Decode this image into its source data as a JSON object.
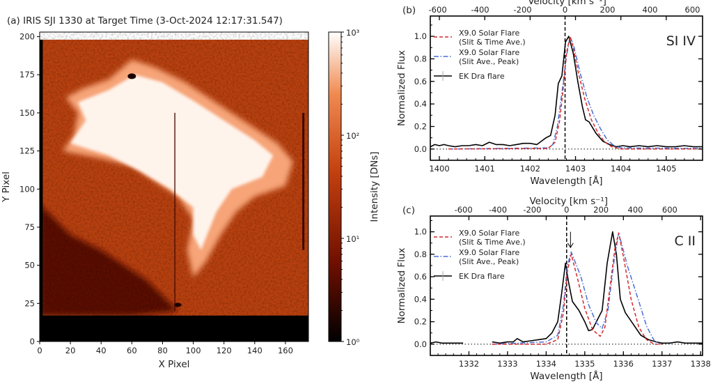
{
  "chart_data": [
    {
      "type": "heatmap",
      "title": "(a) IRIS SJI 1330 at Target Time (3-Oct-2024 12:17:31.547)",
      "xlabel": "X Pixel",
      "ylabel": "Y Pixel",
      "xlim": [
        0,
        175
      ],
      "ylim": [
        0,
        203
      ],
      "xticks": [
        0,
        20,
        40,
        60,
        80,
        100,
        120,
        140,
        160
      ],
      "yticks": [
        0,
        25,
        50,
        75,
        100,
        125,
        150,
        175,
        200
      ],
      "colorbar": {
        "label": "Intensity [DNs]",
        "scale": "log",
        "range": [
          1,
          1000
        ],
        "ticks": [
          {
            "value": 1,
            "label": "10⁰"
          },
          {
            "value": 10,
            "label": "10¹"
          },
          {
            "value": 100,
            "label": "10²"
          },
          {
            "value": 1000,
            "label": "10³"
          }
        ],
        "colors": [
          "#000000",
          "#6e0f00",
          "#c4400f",
          "#f08a50",
          "#ffffff"
        ]
      }
    },
    {
      "type": "line",
      "panel_label": "(b)",
      "line_label": "SI IV",
      "xlabel": "Wavelength [Å]",
      "ylabel": "Normalized Flux",
      "top_xlabel": "Velocity [km s⁻¹]",
      "rest_wavelength": 1402.77,
      "xlim": [
        1399.8,
        1405.8
      ],
      "ylim": [
        -0.1,
        1.18
      ],
      "xticks": [
        1400,
        1401,
        1402,
        1403,
        1404,
        1405
      ],
      "yticks": [
        "0.0",
        "0.2",
        "0.4",
        "0.6",
        "0.8",
        "1.0"
      ],
      "top_xticks": [
        -600,
        -400,
        -200,
        0,
        200,
        400,
        600
      ],
      "series": [
        {
          "name": "X9.0 Solar Flare (Slit & Time Ave.)",
          "legend": [
            "X9.0 Solar Flare",
            "(Slit & Time Ave.)"
          ],
          "color": "#d62728",
          "style": "dashed",
          "points": [
            [
              1400.2,
              0
            ],
            [
              1402.4,
              0.005
            ],
            [
              1402.55,
              0.06
            ],
            [
              1402.65,
              0.25
            ],
            [
              1402.72,
              0.5
            ],
            [
              1402.8,
              0.85
            ],
            [
              1402.88,
              1.0
            ],
            [
              1402.95,
              0.9
            ],
            [
              1403.05,
              0.7
            ],
            [
              1403.2,
              0.45
            ],
            [
              1403.35,
              0.26
            ],
            [
              1403.5,
              0.14
            ],
            [
              1403.65,
              0.06
            ],
            [
              1403.8,
              0.02
            ],
            [
              1404.0,
              0.0
            ],
            [
              1405.8,
              0.0
            ]
          ]
        },
        {
          "name": "X9.0 Solar Flare (Slit Ave., Peak)",
          "legend": [
            "X9.0 Solar Flare",
            "(Slit Ave., Peak)"
          ],
          "color": "#4a6fd6",
          "style": "dashdot",
          "points": [
            [
              1400.2,
              0
            ],
            [
              1402.4,
              0.01
            ],
            [
              1402.5,
              0.04
            ],
            [
              1402.6,
              0.2
            ],
            [
              1402.7,
              0.5
            ],
            [
              1402.8,
              0.82
            ],
            [
              1402.88,
              1.0
            ],
            [
              1402.97,
              0.9
            ],
            [
              1403.1,
              0.68
            ],
            [
              1403.25,
              0.46
            ],
            [
              1403.4,
              0.3
            ],
            [
              1403.55,
              0.18
            ],
            [
              1403.7,
              0.08
            ],
            [
              1403.85,
              0.03
            ],
            [
              1404.0,
              0.01
            ],
            [
              1405.8,
              0.005
            ]
          ]
        },
        {
          "name": "EK Dra flare",
          "legend": [
            "EK Dra flare"
          ],
          "color": "#000000",
          "style": "solid",
          "points": [
            [
              1399.8,
              0.02
            ],
            [
              1399.9,
              0.04
            ],
            [
              1400.0,
              0.03
            ],
            [
              1400.1,
              0.04
            ],
            [
              1400.2,
              0.03
            ],
            [
              1400.35,
              0.02
            ],
            [
              1400.5,
              0.03
            ],
            [
              1400.65,
              0.03
            ],
            [
              1400.8,
              0.04
            ],
            [
              1400.95,
              0.03
            ],
            [
              1401.1,
              0.06
            ],
            [
              1401.25,
              0.04
            ],
            [
              1401.4,
              0.04
            ],
            [
              1401.55,
              0.03
            ],
            [
              1401.7,
              0.04
            ],
            [
              1401.85,
              0.05
            ],
            [
              1402.0,
              0.05
            ],
            [
              1402.15,
              0.04
            ],
            [
              1402.25,
              0.07
            ],
            [
              1402.35,
              0.1
            ],
            [
              1402.45,
              0.12
            ],
            [
              1402.55,
              0.3
            ],
            [
              1402.62,
              0.58
            ],
            [
              1402.7,
              0.65
            ],
            [
              1402.78,
              0.95
            ],
            [
              1402.85,
              1.0
            ],
            [
              1402.95,
              0.85
            ],
            [
              1403.05,
              0.6
            ],
            [
              1403.15,
              0.38
            ],
            [
              1403.22,
              0.26
            ],
            [
              1403.3,
              0.24
            ],
            [
              1403.45,
              0.14
            ],
            [
              1403.6,
              0.07
            ],
            [
              1403.75,
              0.04
            ],
            [
              1403.9,
              0.02
            ],
            [
              1404.05,
              0.03
            ],
            [
              1404.2,
              0.02
            ],
            [
              1404.4,
              0.03
            ],
            [
              1404.6,
              0.02
            ],
            [
              1404.8,
              0.03
            ],
            [
              1405.0,
              0.02
            ],
            [
              1405.2,
              0.02
            ],
            [
              1405.4,
              0.03
            ],
            [
              1405.6,
              0.02
            ],
            [
              1405.8,
              0.02
            ]
          ]
        }
      ]
    },
    {
      "type": "line",
      "panel_label": "(c)",
      "line_label": "C II",
      "xlabel": "Wavelength [Å]",
      "ylabel": "Normalized Flux",
      "top_xlabel": "Velocity [km s⁻¹]",
      "rest_wavelength": 1334.53,
      "arrow_wavelength": 1334.63,
      "xlim": [
        1331.0,
        1338.05
      ],
      "ylim": [
        -0.1,
        1.14
      ],
      "xticks": [
        1332,
        1333,
        1334,
        1335,
        1336,
        1337,
        1338
      ],
      "yticks": [
        "0.0",
        "0.2",
        "0.4",
        "0.6",
        "0.8",
        "1.0"
      ],
      "top_xticks": [
        -600,
        -400,
        -200,
        0,
        200,
        400,
        600
      ],
      "series": [
        {
          "name": "X9.0 Solar Flare (Slit & Time Ave.)",
          "legend": [
            "X9.0 Solar Flare",
            "(Slit & Time Ave.)"
          ],
          "color": "#d62728",
          "style": "dashed",
          "points": [
            [
              1332.6,
              0
            ],
            [
              1334.0,
              0.0
            ],
            [
              1334.3,
              0.04
            ],
            [
              1334.45,
              0.28
            ],
            [
              1334.55,
              0.65
            ],
            [
              1334.65,
              0.8
            ],
            [
              1334.8,
              0.6
            ],
            [
              1335.0,
              0.32
            ],
            [
              1335.2,
              0.13
            ],
            [
              1335.4,
              0.07
            ],
            [
              1335.52,
              0.15
            ],
            [
              1335.65,
              0.5
            ],
            [
              1335.78,
              0.85
            ],
            [
              1335.88,
              0.99
            ],
            [
              1336.0,
              0.78
            ],
            [
              1336.2,
              0.4
            ],
            [
              1336.4,
              0.15
            ],
            [
              1336.6,
              0.04
            ],
            [
              1336.8,
              0.0
            ],
            [
              1337.0,
              0.0
            ]
          ]
        },
        {
          "name": "X9.0 Solar Flare (Slit Ave., Peak)",
          "legend": [
            "X9.0 Solar Flare",
            "(Slit Ave., Peak)"
          ],
          "color": "#4a6fd6",
          "style": "dashdot",
          "points": [
            [
              1332.6,
              0
            ],
            [
              1334.0,
              0.02
            ],
            [
              1334.3,
              0.08
            ],
            [
              1334.45,
              0.35
            ],
            [
              1334.55,
              0.7
            ],
            [
              1334.65,
              0.82
            ],
            [
              1334.9,
              0.6
            ],
            [
              1335.1,
              0.35
            ],
            [
              1335.3,
              0.19
            ],
            [
              1335.45,
              0.14
            ],
            [
              1335.6,
              0.3
            ],
            [
              1335.75,
              0.72
            ],
            [
              1335.88,
              0.99
            ],
            [
              1336.1,
              0.7
            ],
            [
              1336.4,
              0.38
            ],
            [
              1336.6,
              0.16
            ],
            [
              1336.8,
              0.03
            ],
            [
              1336.95,
              0.0
            ]
          ]
        },
        {
          "name": "EK Dra flare",
          "legend": [
            "EK Dra flare"
          ],
          "color": "#000000",
          "style": "solid",
          "points": [
            [
              1331.0,
              0.01
            ],
            [
              1331.15,
              0.02
            ],
            [
              1331.3,
              0.01
            ],
            [
              1331.5,
              0.01
            ],
            [
              1331.7,
              0.01
            ],
            [
              1331.85,
              0.01
            ],
            null,
            [
              1332.6,
              0.02
            ],
            [
              1332.8,
              0.01
            ],
            [
              1333.0,
              0.02
            ],
            [
              1333.15,
              0.02
            ],
            [
              1333.25,
              0.05
            ],
            [
              1333.4,
              0.02
            ],
            [
              1333.6,
              0.03
            ],
            [
              1333.8,
              0.04
            ],
            [
              1334.0,
              0.05
            ],
            [
              1334.15,
              0.1
            ],
            [
              1334.3,
              0.2
            ],
            [
              1334.4,
              0.45
            ],
            [
              1334.5,
              0.72
            ],
            [
              1334.58,
              0.55
            ],
            [
              1334.68,
              0.38
            ],
            [
              1334.85,
              0.3
            ],
            [
              1335.0,
              0.2
            ],
            [
              1335.1,
              0.12
            ],
            [
              1335.2,
              0.13
            ],
            [
              1335.3,
              0.2
            ],
            [
              1335.45,
              0.3
            ],
            [
              1335.58,
              0.72
            ],
            [
              1335.72,
              1.0
            ],
            [
              1335.82,
              0.8
            ],
            [
              1335.92,
              0.4
            ],
            [
              1336.05,
              0.28
            ],
            [
              1336.25,
              0.18
            ],
            [
              1336.45,
              0.08
            ],
            [
              1336.65,
              0.04
            ],
            [
              1336.85,
              0.02
            ],
            [
              1337.0,
              0.01
            ],
            [
              1337.2,
              0.01
            ],
            [
              1337.4,
              0.02
            ],
            [
              1337.6,
              0.01
            ],
            [
              1337.8,
              0.01
            ],
            [
              1338.05,
              0.01
            ]
          ]
        }
      ]
    }
  ]
}
